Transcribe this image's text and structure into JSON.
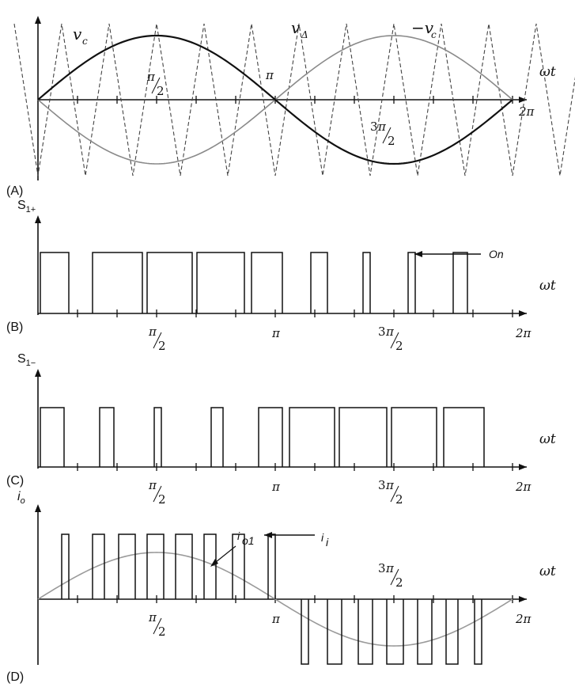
{
  "panels": [
    {
      "id": "A",
      "label": "(A)",
      "axis_label": "",
      "ticks": [
        {
          "at": 0.5,
          "num": "π",
          "den": "2"
        },
        {
          "at": 1.0,
          "text": "π"
        },
        {
          "at": 1.5,
          "pre": "3",
          "num": "π",
          "den": "2"
        },
        {
          "at": 2.0,
          "text": "2π"
        }
      ]
    },
    {
      "id": "B",
      "label": "(B)",
      "axis_label": "S",
      "axis_sub": "1+",
      "ticks": [
        {
          "at": 0.5,
          "num": "π",
          "den": "2"
        },
        {
          "at": 1.0,
          "text": "π"
        },
        {
          "at": 1.5,
          "pre": "3",
          "num": "π",
          "den": "2"
        },
        {
          "at": 2.0,
          "text": "2π"
        }
      ],
      "annotation": "On"
    },
    {
      "id": "C",
      "label": "(C)",
      "axis_label": "S",
      "axis_sub": "1−",
      "ticks": [
        {
          "at": 0.5,
          "num": "π",
          "den": "2"
        },
        {
          "at": 1.0,
          "text": "π"
        },
        {
          "at": 1.5,
          "pre": "3",
          "num": "π",
          "den": "2"
        },
        {
          "at": 2.0,
          "text": "2π"
        }
      ]
    },
    {
      "id": "D",
      "label": "(D)",
      "axis_label": "i",
      "axis_sub": "o",
      "ticks": [
        {
          "at": 0.5,
          "num": "π",
          "den": "2"
        },
        {
          "at": 1.0,
          "text": "π"
        },
        {
          "at": 1.5,
          "pre": "3",
          "num": "π",
          "den": "2",
          "above": true
        },
        {
          "at": 2.0,
          "text": "2π"
        }
      ],
      "annotation_ii": "i",
      "annotation_ii_sub": "i",
      "annotation_io1": "i",
      "annotation_io1_sub": "o1"
    }
  ],
  "chart_data": [
    {
      "type": "line",
      "panel": "A",
      "x_unit": "pi",
      "xlim": [
        0,
        2
      ],
      "ylim": [
        -1,
        1
      ],
      "x_axis_label": "ωt",
      "series": [
        {
          "name": "v_c",
          "function": "sin",
          "amplitude": 0.55,
          "style": "solid-dark"
        },
        {
          "name": "−v_c",
          "function": "-sin",
          "amplitude": 0.55,
          "style": "solid-gray"
        },
        {
          "name": "v_Δ",
          "function": "triangle",
          "amplitude": 1,
          "carrier_cycles": 10,
          "style": "dashed"
        }
      ]
    },
    {
      "type": "line",
      "panel": "B",
      "x_unit": "pi",
      "xlim": [
        0,
        2
      ],
      "ylim": [
        0,
        1
      ],
      "x_axis_label": "ωt",
      "series": [
        {
          "name": "S1+",
          "pulses": [
            [
              0.01,
              0.13
            ],
            [
              0.23,
              0.44
            ],
            [
              0.46,
              0.65
            ],
            [
              0.67,
              0.87
            ],
            [
              0.9,
              1.03
            ],
            [
              1.15,
              1.22
            ],
            [
              1.37,
              1.4
            ],
            [
              1.56,
              1.59
            ],
            [
              1.75,
              1.81
            ]
          ],
          "level": 1
        }
      ]
    },
    {
      "type": "line",
      "panel": "C",
      "x_unit": "pi",
      "xlim": [
        0,
        2
      ],
      "ylim": [
        0,
        1
      ],
      "x_axis_label": "ωt",
      "series": [
        {
          "name": "S1−",
          "pulses": [
            [
              0.01,
              0.11
            ],
            [
              0.26,
              0.32
            ],
            [
              0.49,
              0.52
            ],
            [
              0.73,
              0.78
            ],
            [
              0.93,
              1.03
            ],
            [
              1.06,
              1.25
            ],
            [
              1.27,
              1.47
            ],
            [
              1.49,
              1.68
            ],
            [
              1.71,
              1.88
            ]
          ],
          "level": 1
        }
      ]
    },
    {
      "type": "line",
      "panel": "D",
      "x_unit": "pi",
      "xlim": [
        0,
        2
      ],
      "ylim": [
        -1,
        1
      ],
      "x_axis_label": "ωt",
      "series": [
        {
          "name": "i_i",
          "pulses": [
            [
              0.1,
              0.13
            ],
            [
              0.23,
              0.28
            ],
            [
              0.34,
              0.41
            ],
            [
              0.46,
              0.53
            ],
            [
              0.58,
              0.65
            ],
            [
              0.7,
              0.75
            ],
            [
              0.82,
              0.87
            ],
            [
              0.97,
              1.0
            ]
          ],
          "level": 1
        },
        {
          "name": "i_i_neg",
          "pulses": [
            [
              1.11,
              1.14
            ],
            [
              1.22,
              1.28
            ],
            [
              1.35,
              1.41
            ],
            [
              1.47,
              1.54
            ],
            [
              1.6,
              1.66
            ],
            [
              1.72,
              1.77
            ],
            [
              1.84,
              1.87
            ]
          ],
          "level": -1
        },
        {
          "name": "i_o1",
          "function": "sin",
          "amplitude": 0.72,
          "style": "solid-gray"
        }
      ]
    }
  ]
}
